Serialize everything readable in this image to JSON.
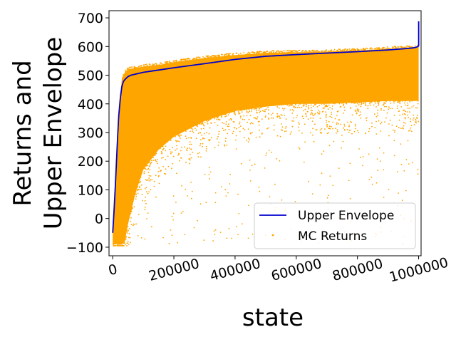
{
  "chart_data": {
    "type": "scatter",
    "title": "",
    "xlabel": "state",
    "ylabel_lines": [
      "Returns and",
      "Upper Envelope"
    ],
    "xlim": [
      -12000,
      1008000
    ],
    "ylim": [
      -130,
      725
    ],
    "x_ticks": [
      0,
      200000,
      400000,
      600000,
      800000,
      1000000
    ],
    "x_tick_labels": [
      "0",
      "200000",
      "400000",
      "600000",
      "800000",
      "1000000"
    ],
    "y_ticks": [
      -100,
      0,
      100,
      200,
      300,
      400,
      500,
      600,
      700
    ],
    "y_tick_labels": [
      "−100",
      "0",
      "100",
      "200",
      "300",
      "400",
      "500",
      "600",
      "700"
    ],
    "legend": {
      "placement": "lower-right",
      "entries": [
        "Upper Envelope",
        "MC Returns"
      ]
    },
    "grid": false,
    "series": [
      {
        "name": "Upper Envelope",
        "kind": "line",
        "color": "#0000cc",
        "x": [
          0,
          4000,
          8000,
          12000,
          16000,
          20000,
          25000,
          30000,
          35000,
          40000,
          45000,
          50000,
          60000,
          80000,
          100000,
          150000,
          200000,
          300000,
          400000,
          500000,
          600000,
          700000,
          800000,
          900000,
          950000,
          980000,
          990000,
          995000,
          998000,
          1000000,
          1000000
        ],
        "y": [
          -50,
          20,
          100,
          190,
          280,
          360,
          420,
          460,
          478,
          485,
          490,
          495,
          500,
          505,
          510,
          518,
          526,
          540,
          555,
          566,
          572,
          577,
          582,
          588,
          592,
          595,
          597,
          599,
          600,
          603,
          688
        ]
      },
      {
        "name": "MC Returns",
        "kind": "scatter",
        "color": "#ffa500",
        "band_x": [
          0,
          5000,
          10000,
          15000,
          20000,
          25000,
          30000,
          40000,
          50000,
          75000,
          100000,
          150000,
          200000,
          300000,
          400000,
          500000,
          600000,
          700000,
          800000,
          900000,
          1000000
        ],
        "band_upper": [
          -40,
          30,
          120,
          220,
          320,
          420,
          490,
          510,
          520,
          525,
          530,
          535,
          545,
          560,
          570,
          578,
          580,
          582,
          586,
          592,
          598
        ],
        "band_lower": [
          -90,
          -90,
          -90,
          -90,
          -90,
          -90,
          -90,
          -80,
          -20,
          90,
          170,
          240,
          285,
          340,
          375,
          390,
          400,
          400,
          405,
          410,
          410
        ]
      }
    ]
  }
}
